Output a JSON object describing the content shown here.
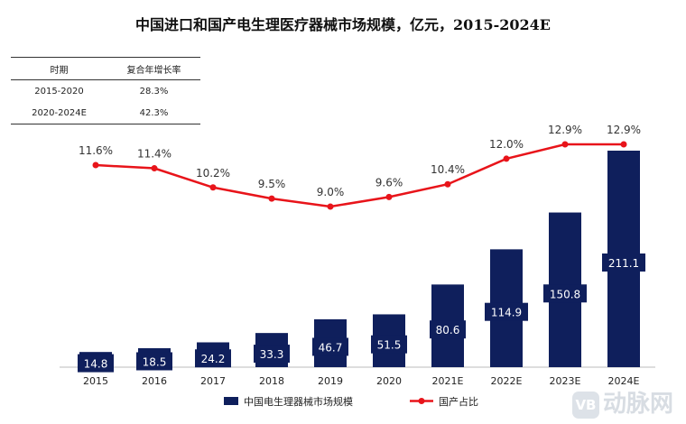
{
  "title": "中国进口和国产电生理医疗器械市场规模，亿元，2015-2024E",
  "cagr_table": {
    "headers": [
      "时期",
      "复合年增长率"
    ],
    "rows": [
      [
        "2015-2020",
        "28.3%"
      ],
      [
        "2020-2024E",
        "42.3%"
      ]
    ]
  },
  "watermark": {
    "badge": "VB",
    "text": "动脉网"
  },
  "colors": {
    "bar": "#0f1f5c",
    "line": "#e8141a",
    "bar_label_bg": "#0f1f5c",
    "bar_label_text": "#ffffff"
  },
  "chart_data": {
    "type": "bar",
    "categories": [
      "2015",
      "2016",
      "2017",
      "2018",
      "2019",
      "2020",
      "2021E",
      "2022E",
      "2023E",
      "2024E"
    ],
    "series": [
      {
        "name": "中国电生理器械市场规模",
        "type": "bar",
        "axis": "left",
        "values": [
          14.8,
          18.5,
          24.2,
          33.3,
          46.7,
          51.5,
          80.6,
          114.9,
          150.8,
          211.1
        ],
        "labels": [
          "14.8",
          "18.5",
          "24.2",
          "33.3",
          "46.7",
          "51.5",
          "80.6",
          "114.9",
          "150.8",
          "211.1"
        ]
      },
      {
        "name": "国产占比",
        "type": "line",
        "axis": "right",
        "values": [
          11.6,
          11.4,
          10.2,
          9.5,
          9.0,
          9.6,
          10.4,
          12.0,
          12.9,
          12.9
        ],
        "labels": [
          "11.6%",
          "11.4%",
          "10.2%",
          "9.5%",
          "9.0%",
          "9.6%",
          "10.4%",
          "12.0%",
          "12.9%",
          "12.9%"
        ]
      }
    ],
    "ylim": [
      0,
      211.1
    ],
    "y2lim": [
      9.0,
      12.9
    ],
    "grid": false,
    "legend_position": "bottom"
  }
}
